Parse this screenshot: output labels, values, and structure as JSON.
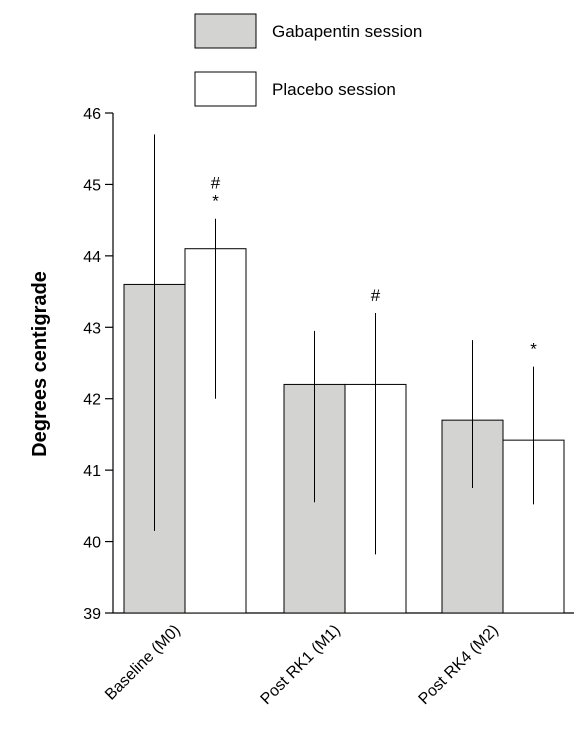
{
  "legend": {
    "items": [
      {
        "label": "Gabapentin session",
        "color": "#d3d3d1"
      },
      {
        "label": "Placebo session",
        "color": "#ffffff"
      }
    ]
  },
  "chart_data": {
    "type": "bar",
    "ylabel": "Degrees centigrade",
    "xlabel": "",
    "ylim": [
      39,
      46
    ],
    "yticks": [
      39,
      40,
      41,
      42,
      43,
      44,
      45,
      46
    ],
    "categories": [
      "Baseline (M0)",
      "Post RK1 (M1)",
      "Post RK4 (M2)"
    ],
    "series": [
      {
        "name": "Gabapentin session",
        "color": "#d3d3d1",
        "values": [
          43.6,
          42.2,
          41.7
        ],
        "error_low": [
          40.15,
          40.55,
          40.75
        ],
        "error_high": [
          45.7,
          42.95,
          42.82
        ]
      },
      {
        "name": "Placebo session",
        "color": "#ffffff",
        "values": [
          44.1,
          42.2,
          41.42
        ],
        "error_low": [
          42.0,
          39.82,
          40.52
        ],
        "error_high": [
          44.52,
          43.2,
          42.45
        ]
      }
    ],
    "annotations": [
      {
        "category_index": 0,
        "series_index": 1,
        "text": "#\n*"
      },
      {
        "category_index": 1,
        "series_index": 1,
        "text": "#"
      },
      {
        "category_index": 2,
        "series_index": 1,
        "text": "*"
      }
    ]
  }
}
